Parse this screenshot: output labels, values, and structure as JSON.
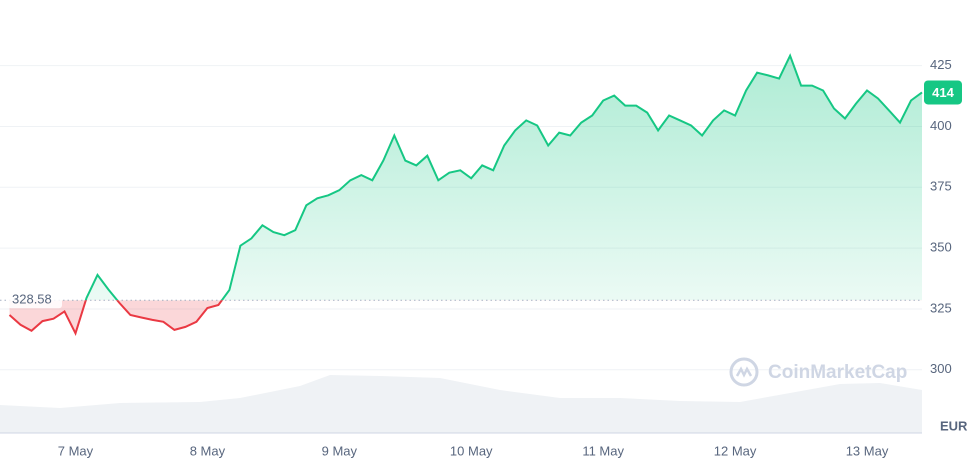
{
  "chart_data": {
    "type": "line",
    "categories": [
      null,
      null,
      null,
      null,
      null,
      null,
      "7 May",
      null,
      null,
      null,
      null,
      null,
      null,
      null,
      null,
      null,
      null,
      null,
      "8 May",
      null,
      null,
      null,
      null,
      null,
      null,
      null,
      null,
      null,
      null,
      null,
      "9 May",
      null,
      null,
      null,
      null,
      null,
      null,
      null,
      null,
      null,
      null,
      null,
      "10 May",
      null,
      null,
      null,
      null,
      null,
      null,
      null,
      null,
      null,
      null,
      null,
      "11 May",
      null,
      null,
      null,
      null,
      null,
      null,
      null,
      null,
      null,
      null,
      null,
      "12 May",
      null,
      null,
      null,
      null,
      null,
      null,
      null,
      null,
      null,
      null,
      null,
      "13 May",
      null,
      null,
      null,
      null,
      null
    ],
    "series": [
      {
        "color": "#16c784",
        "values": [
          322.5,
          318.5,
          316,
          320,
          321,
          324,
          315,
          329.5,
          339,
          333,
          327.5,
          322.5,
          321.5,
          320.5,
          319.7,
          316.4,
          317.6,
          319.7,
          325.4,
          326.6,
          332.8,
          351,
          354,
          359.4,
          356.6,
          355.3,
          357.4,
          367.6,
          370.5,
          371.7,
          373.8,
          377.9,
          380,
          377.9,
          386,
          396.3,
          386,
          384,
          388,
          377.9,
          381,
          382,
          378.7,
          384,
          382,
          392.2,
          398.4,
          402.5,
          400.4,
          392.2,
          397.5,
          396.3,
          401.6,
          404.5,
          410.7,
          412.7,
          408.6,
          408.6,
          405.7,
          398.4,
          404.5,
          402.5,
          400.4,
          396.3,
          402.5,
          406.6,
          404.5,
          414.8,
          422.1,
          421,
          419.7,
          429.1,
          416.8,
          416.8,
          414.8,
          407.4,
          403.3,
          409.4,
          414.8,
          411.5,
          406.6,
          401.6,
          410.7,
          414
        ]
      }
    ],
    "below_color": "#ea3943",
    "baseline": 328.58,
    "current_price": 414,
    "currency": "EUR",
    "watermark": "CoinMarketCap",
    "ylim": [
      274,
      452
    ],
    "yticks": [
      300,
      325,
      350,
      375,
      400,
      425
    ],
    "grid": true
  }
}
